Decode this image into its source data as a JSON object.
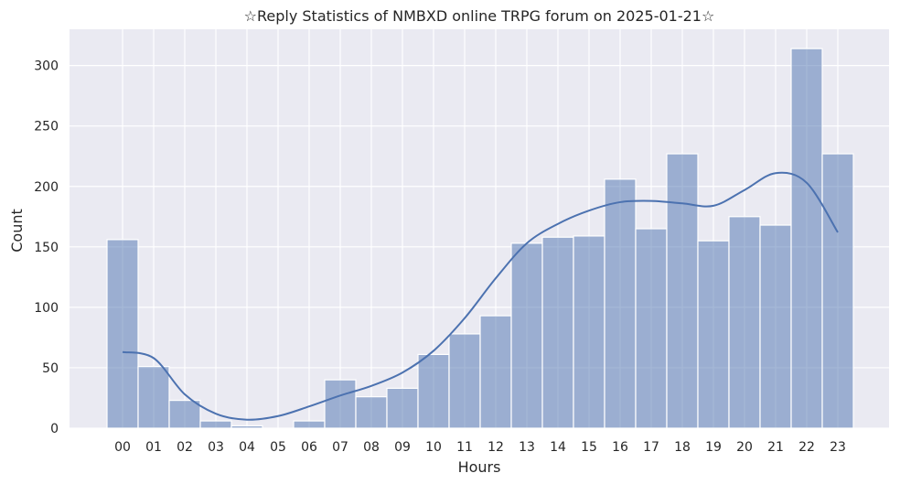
{
  "chart_data": {
    "type": "bar",
    "title": "☆Reply Statistics of NMBXD online TRPG forum on 2025-01-21☆",
    "xlabel": "Hours",
    "ylabel": "Count",
    "categories": [
      "00",
      "01",
      "02",
      "03",
      "04",
      "05",
      "06",
      "07",
      "08",
      "09",
      "10",
      "11",
      "12",
      "13",
      "14",
      "15",
      "16",
      "17",
      "18",
      "19",
      "20",
      "21",
      "22",
      "23"
    ],
    "values": [
      156,
      51,
      23,
      6,
      2,
      0,
      6,
      40,
      26,
      33,
      61,
      78,
      93,
      153,
      158,
      159,
      206,
      165,
      227,
      155,
      175,
      168,
      314,
      227
    ],
    "kde": [
      63,
      58,
      28,
      12,
      7,
      10,
      18,
      27,
      35,
      46,
      64,
      91,
      124,
      153,
      169,
      180,
      187,
      188,
      186,
      184,
      197,
      211,
      203,
      162
    ],
    "yticks": [
      0,
      50,
      100,
      150,
      200,
      250,
      300
    ],
    "ylim": [
      0,
      330
    ],
    "grid": true,
    "colors": {
      "background": "#eaeaf2",
      "grid": "#ffffff",
      "bar_fill": "#4c72b0",
      "bar_opacity": 0.5,
      "kde_line": "#4c72b0"
    }
  }
}
